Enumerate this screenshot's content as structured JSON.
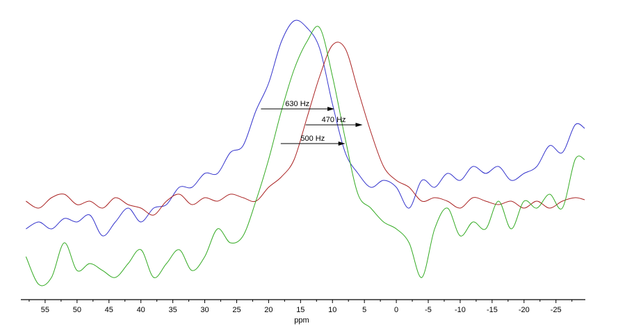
{
  "chart_data": {
    "type": "line",
    "title": "",
    "xlabel": "ppm",
    "ylabel": "",
    "xlim": [
      58.8,
      -29.6
    ],
    "ylim": [
      0,
      410
    ],
    "x_reversed": true,
    "grid": false,
    "x_ticks": [
      55,
      50,
      45,
      40,
      35,
      30,
      25,
      20,
      15,
      10,
      5,
      0,
      -5,
      -10,
      -15,
      -20,
      -25
    ],
    "x": [
      58,
      56,
      54,
      52,
      50,
      48,
      46,
      44,
      42,
      40,
      38,
      36,
      34,
      32,
      30,
      28,
      26,
      24,
      22,
      20,
      18,
      16,
      14,
      12,
      10,
      8,
      6,
      4,
      2,
      0,
      -2,
      -4,
      -6,
      -8,
      -10,
      -12,
      -14,
      -16,
      -18,
      -20,
      -22,
      -24,
      -26,
      -28,
      -29.5
    ],
    "series": [
      {
        "color": "#3333cc",
        "values": [
          102,
          112,
          102,
          117,
          112,
          122,
          92,
          112,
          132,
          112,
          132,
          137,
          162,
          162,
          182,
          182,
          212,
          222,
          272,
          312,
          372,
          402,
          392,
          362,
          282,
          212,
          182,
          162,
          172,
          162,
          132,
          172,
          162,
          182,
          172,
          192,
          182,
          192,
          172,
          182,
          192,
          222,
          212,
          252,
          247
        ]
      },
      {
        "color": "#aa2222",
        "values": [
          142,
          132,
          147,
          152,
          137,
          142,
          132,
          147,
          137,
          132,
          122,
          142,
          152,
          137,
          147,
          142,
          152,
          147,
          142,
          162,
          177,
          202,
          262,
          322,
          367,
          362,
          302,
          242,
          192,
          172,
          162,
          142,
          147,
          142,
          132,
          147,
          142,
          137,
          142,
          132,
          142,
          132,
          142,
          147,
          144
        ]
      },
      {
        "color": "#33aa22",
        "values": [
          62,
          22,
          32,
          82,
          42,
          52,
          42,
          32,
          52,
          72,
          32,
          52,
          72,
          42,
          62,
          102,
          82,
          92,
          142,
          202,
          272,
          332,
          372,
          392,
          322,
          232,
          152,
          132,
          112,
          102,
          82,
          32,
          102,
          132,
          92,
          112,
          102,
          142,
          102,
          142,
          132,
          152,
          132,
          202,
          202
        ]
      }
    ],
    "annotations": [
      {
        "text": "630 Hz",
        "from": 21.2,
        "to": 9.8,
        "level": 275
      },
      {
        "text": "470 Hz",
        "from": 14.2,
        "to": 5.4,
        "level": 252
      },
      {
        "text": "500 Hz",
        "from": 18.1,
        "to": 8.1,
        "level": 225
      }
    ]
  }
}
